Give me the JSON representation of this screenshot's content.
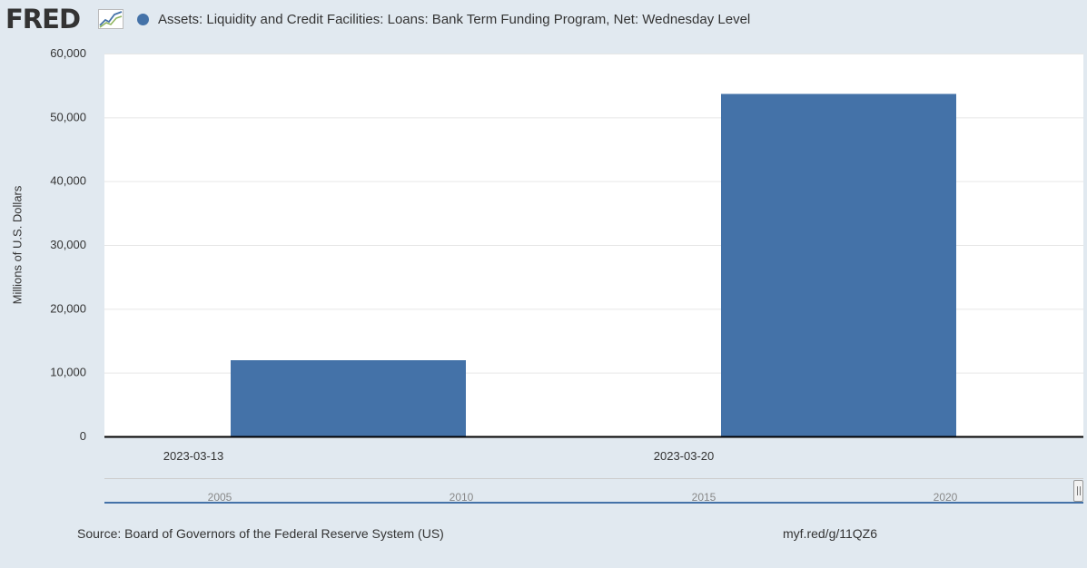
{
  "header": {
    "logo_text": "FRED",
    "logo_icon": "line-chart-icon",
    "legend_label": "Assets: Liquidity and Credit Facilities: Loans: Bank Term Funding Program, Net: Wednesday Level",
    "legend_color": "#4472a8"
  },
  "chart_data": {
    "type": "bar",
    "categories": [
      "2023-03-13",
      "2023-03-20"
    ],
    "values": [
      11943,
      53669
    ],
    "ylabel": "Millions of U.S. Dollars",
    "ylim": [
      0,
      60000
    ],
    "yticks": [
      "0",
      "10,000",
      "20,000",
      "30,000",
      "40,000",
      "50,000",
      "60,000"
    ],
    "grid": true,
    "bar_color": "#4472a8"
  },
  "navigator": {
    "years": [
      "2005",
      "2010",
      "2015",
      "2020"
    ]
  },
  "footer": {
    "source": "Source: Board of Governors of the Federal Reserve System (US)",
    "shortlink": "myf.red/g/11QZ6"
  }
}
